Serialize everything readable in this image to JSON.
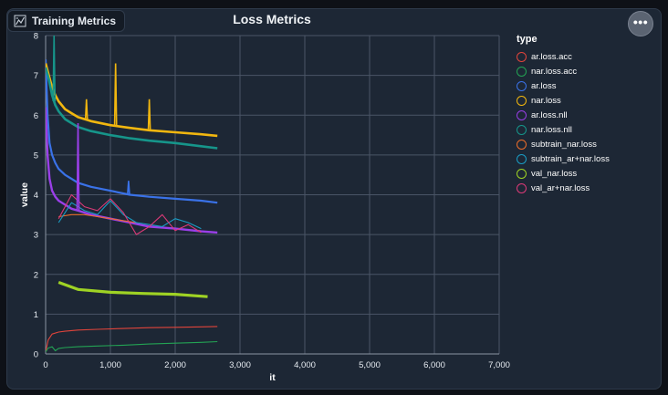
{
  "panel": {
    "badge_label": "Training Metrics",
    "badge_icon": "chart-icon",
    "menu_icon": "more-dots-icon",
    "menu_label": "•••"
  },
  "colors": {
    "ar.loss.acc": "#e0443b",
    "nar.loss.acc": "#23a354",
    "ar.loss": "#3a72e8",
    "nar.loss": "#f2b70f",
    "ar.loss.nll": "#9a3fe8",
    "nar.loss.nll": "#16958a",
    "subtrain_nar.loss": "#ec6d2a",
    "subtrain_ar+nar.loss": "#1a9cc4",
    "val_nar.loss": "#9fd324",
    "val_ar+nar.loss": "#dd3a78"
  },
  "chart_data": {
    "type": "line",
    "title": "Loss Metrics",
    "xlabel": "it",
    "ylabel": "value",
    "xlim": [
      0,
      7000
    ],
    "ylim": [
      0,
      8
    ],
    "xticks": [
      0,
      1000,
      2000,
      3000,
      4000,
      5000,
      6000,
      7000
    ],
    "xtick_labels": [
      "0",
      "1,000",
      "2,000",
      "3,000",
      "4,000",
      "5,000",
      "6,000",
      "7,000"
    ],
    "yticks": [
      0,
      1,
      2,
      3,
      4,
      5,
      6,
      7,
      8
    ],
    "ytick_labels": [
      "0",
      "1",
      "2",
      "3",
      "4",
      "5",
      "6",
      "7",
      "8"
    ],
    "grid": true,
    "legend_title": "type",
    "legend_position": "right",
    "series": [
      {
        "name": "ar.loss.acc",
        "x": [
          0,
          40,
          100,
          200,
          300,
          500,
          800,
          1200,
          1600,
          2000,
          2400,
          2650
        ],
        "y": [
          0.05,
          0.35,
          0.5,
          0.55,
          0.57,
          0.6,
          0.62,
          0.64,
          0.66,
          0.67,
          0.68,
          0.69
        ]
      },
      {
        "name": "nar.loss.acc",
        "x": [
          0,
          40,
          100,
          150,
          200,
          300,
          500,
          800,
          1200,
          1600,
          2000,
          2400,
          2650
        ],
        "y": [
          0.05,
          0.15,
          0.18,
          0.08,
          0.14,
          0.16,
          0.18,
          0.2,
          0.22,
          0.25,
          0.27,
          0.29,
          0.31
        ]
      },
      {
        "name": "ar.loss",
        "x": [
          0,
          30,
          60,
          100,
          150,
          200,
          300,
          400,
          500,
          700,
          1000,
          1300,
          1600,
          2000,
          2400,
          2650
        ],
        "y": [
          7.4,
          6.0,
          5.3,
          5.0,
          4.8,
          4.65,
          4.5,
          4.4,
          4.3,
          4.2,
          4.1,
          4.0,
          3.95,
          3.9,
          3.85,
          3.8
        ]
      },
      {
        "name": "nar.loss",
        "x": [
          0,
          50,
          100,
          150,
          200,
          300,
          400,
          500,
          700,
          1000,
          1300,
          1600,
          2000,
          2400,
          2650
        ],
        "y": [
          7.3,
          7.0,
          6.7,
          6.5,
          6.35,
          6.15,
          6.05,
          5.95,
          5.85,
          5.75,
          5.68,
          5.62,
          5.57,
          5.52,
          5.48
        ]
      },
      {
        "name": "ar.loss.nll",
        "x": [
          0,
          30,
          60,
          100,
          150,
          200,
          300,
          400,
          500,
          700,
          1000,
          1300,
          1600,
          2000,
          2400,
          2650
        ],
        "y": [
          6.2,
          5.0,
          4.4,
          4.1,
          3.95,
          3.85,
          3.75,
          3.65,
          3.6,
          3.5,
          3.4,
          3.3,
          3.2,
          3.15,
          3.08,
          3.05
        ]
      },
      {
        "name": "nar.loss.nll",
        "x": [
          0,
          50,
          100,
          150,
          200,
          300,
          400,
          500,
          700,
          1000,
          1300,
          1600,
          2000,
          2400,
          2650
        ],
        "y": [
          7.2,
          6.9,
          6.5,
          6.25,
          6.1,
          5.9,
          5.8,
          5.7,
          5.6,
          5.5,
          5.42,
          5.36,
          5.3,
          5.22,
          5.17
        ]
      },
      {
        "name": "subtrain_nar.loss",
        "x": [
          200,
          400,
          600,
          800,
          1000,
          1200,
          1400
        ],
        "y": [
          3.45,
          3.5,
          3.5,
          3.45,
          3.4,
          3.35,
          3.3
        ]
      },
      {
        "name": "subtrain_ar+nar.loss",
        "x": [
          200,
          400,
          600,
          800,
          1000,
          1200,
          1400,
          1600,
          1800,
          2000,
          2200,
          2400
        ],
        "y": [
          3.3,
          3.8,
          3.6,
          3.5,
          3.85,
          3.5,
          3.3,
          3.25,
          3.2,
          3.4,
          3.3,
          3.15
        ]
      },
      {
        "name": "val_nar.loss",
        "x": [
          200,
          500,
          1000,
          1500,
          2000,
          2500
        ],
        "y": [
          1.8,
          1.62,
          1.55,
          1.52,
          1.5,
          1.44
        ]
      },
      {
        "name": "val_ar+nar.loss",
        "x": [
          200,
          400,
          600,
          800,
          1000,
          1200,
          1400,
          1600,
          1800,
          2000,
          2200,
          2400
        ],
        "y": [
          3.4,
          4.0,
          3.7,
          3.6,
          3.9,
          3.55,
          3.0,
          3.2,
          3.5,
          3.1,
          3.25,
          3.05
        ]
      }
    ],
    "spikes": [
      {
        "series": "nar.loss.nll",
        "x": 130,
        "y": 8.0
      },
      {
        "series": "nar.loss",
        "x": 630,
        "y": 6.4
      },
      {
        "series": "nar.loss",
        "x": 1080,
        "y": 7.3
      },
      {
        "series": "nar.loss",
        "x": 1600,
        "y": 6.4
      },
      {
        "series": "ar.loss",
        "x": 1280,
        "y": 4.35
      },
      {
        "series": "ar.loss.nll",
        "x": 500,
        "y": 5.8
      }
    ]
  }
}
